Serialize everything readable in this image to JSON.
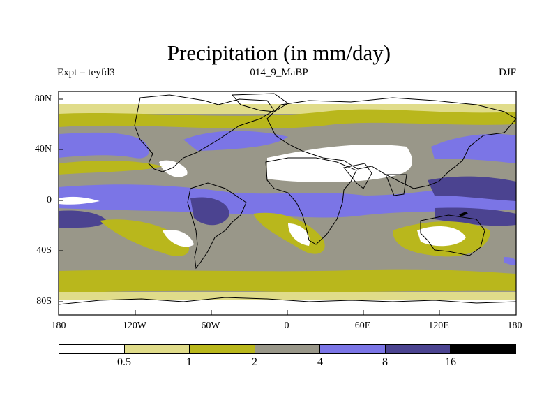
{
  "title": "Precipitation (in mm/day)",
  "experiment": "Expt = teyfd3",
  "run_id": "014_9_MaBP",
  "season": "DJF",
  "lat_ticks": [
    "80N",
    "40N",
    "0",
    "40S",
    "80S"
  ],
  "lon_ticks": [
    "180",
    "120W",
    "60W",
    "0",
    "60E",
    "120E",
    "180"
  ],
  "legend": {
    "levels": [
      "0.5",
      "1",
      "2",
      "4",
      "8",
      "16"
    ],
    "colors": [
      "#ffffff",
      "#e0dc8a",
      "#b9b71c",
      "#999789",
      "#7b75e6",
      "#4b4390",
      "#000000"
    ]
  },
  "colors": {
    "ocean_base": "#999789",
    "coastline": "#000000"
  }
}
